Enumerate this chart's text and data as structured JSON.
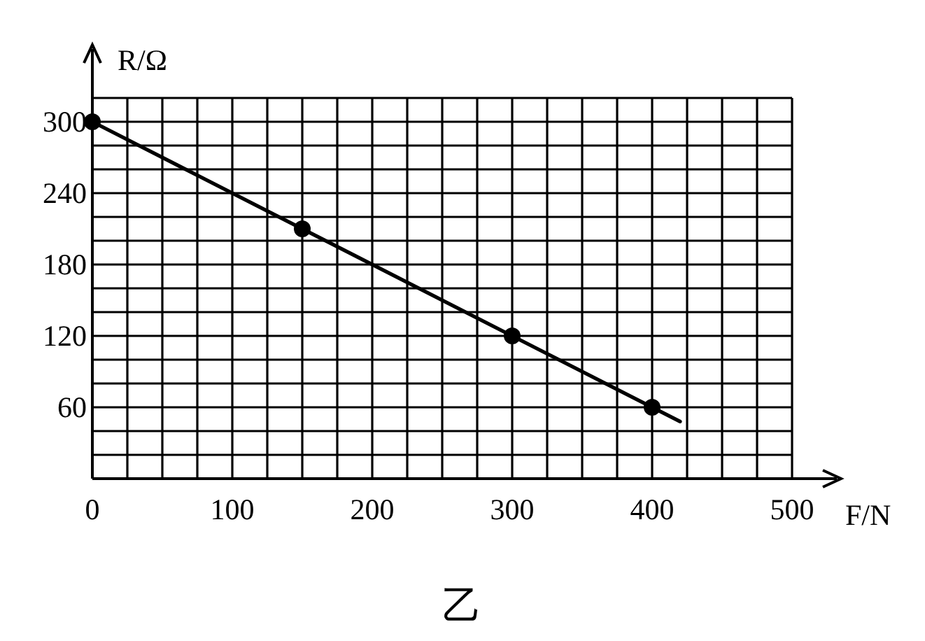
{
  "chart_data": {
    "type": "line",
    "xlabel": "F/N",
    "ylabel": "R/Ω",
    "xlim": [
      0,
      500
    ],
    "ylim": [
      0,
      320
    ],
    "xticks": [
      0,
      {
        "value": 25,
        "label": null
      },
      {
        "value": 50,
        "label": null
      },
      {
        "value": 75,
        "label": null
      },
      100,
      {
        "value": 125,
        "label": null
      },
      {
        "value": 150,
        "label": null
      },
      {
        "value": 175,
        "label": null
      },
      200,
      {
        "value": 225,
        "label": null
      },
      {
        "value": 250,
        "label": null
      },
      {
        "value": 275,
        "label": null
      },
      300,
      {
        "value": 325,
        "label": null
      },
      {
        "value": 350,
        "label": null
      },
      {
        "value": 375,
        "label": null
      },
      400,
      {
        "value": 425,
        "label": null
      },
      {
        "value": 450,
        "label": null
      },
      {
        "value": 475,
        "label": null
      },
      500
    ],
    "yticks": [
      {
        "value": 0,
        "label": null
      },
      {
        "value": 20,
        "label": null
      },
      {
        "value": 40,
        "label": null
      },
      60,
      {
        "value": 80,
        "label": null
      },
      {
        "value": 100,
        "label": null
      },
      120,
      {
        "value": 140,
        "label": null
      },
      {
        "value": 160,
        "label": null
      },
      180,
      {
        "value": 200,
        "label": null
      },
      {
        "value": 220,
        "label": null
      },
      240,
      {
        "value": 260,
        "label": null
      },
      {
        "value": 280,
        "label": null
      },
      300,
      {
        "value": 320,
        "label": null
      }
    ],
    "grid": true,
    "series": [
      {
        "type": "line",
        "x": [
          0,
          420
        ],
        "values": [
          300,
          48
        ],
        "color": "#000000",
        "marker": "none"
      },
      {
        "type": "scatter",
        "x": [
          0,
          150,
          300,
          400
        ],
        "values": [
          300,
          210,
          120,
          60
        ],
        "color": "#000000",
        "marker": "circle"
      }
    ],
    "annotations": [
      "乙"
    ]
  }
}
